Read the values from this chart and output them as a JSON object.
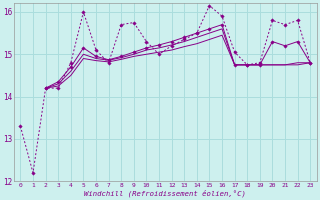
{
  "background_color": "#cdf0ee",
  "grid_color": "#aadddd",
  "line_color": "#880088",
  "xlim": [
    -0.5,
    23.5
  ],
  "ylim": [
    12,
    16.2
  ],
  "yticks": [
    12,
    13,
    14,
    15,
    16
  ],
  "xticks": [
    0,
    1,
    2,
    3,
    4,
    5,
    6,
    7,
    8,
    9,
    10,
    11,
    12,
    13,
    14,
    15,
    16,
    17,
    18,
    19,
    20,
    21,
    22,
    23
  ],
  "xlabel": "Windchill (Refroidissement éolien,°C)",
  "series": [
    {
      "x": [
        0,
        1,
        2,
        3,
        4,
        5,
        6,
        7,
        8,
        9,
        10,
        11,
        12,
        13,
        14,
        15,
        16,
        17,
        18,
        19,
        20,
        21,
        22,
        23
      ],
      "y": [
        13.3,
        12.2,
        14.2,
        14.2,
        14.8,
        16.0,
        15.1,
        14.8,
        15.7,
        15.75,
        15.3,
        15.0,
        15.2,
        15.35,
        15.5,
        16.15,
        15.9,
        15.05,
        14.75,
        14.8,
        15.8,
        15.7,
        15.8,
        14.8
      ],
      "linestyle": "dotted",
      "marker": true
    },
    {
      "x": [
        2,
        3,
        4,
        5,
        6,
        7,
        8,
        9,
        10,
        11,
        12,
        13,
        14,
        15,
        16,
        17,
        18,
        19,
        20,
        21,
        22,
        23
      ],
      "y": [
        14.2,
        14.25,
        14.5,
        14.9,
        14.85,
        14.82,
        14.88,
        14.95,
        15.0,
        15.05,
        15.1,
        15.18,
        15.25,
        15.35,
        15.45,
        14.75,
        14.75,
        14.75,
        14.75,
        14.75,
        14.75,
        14.8
      ],
      "linestyle": "solid",
      "marker": false
    },
    {
      "x": [
        2,
        3,
        4,
        5,
        6,
        7,
        8,
        9,
        10,
        11,
        12,
        13,
        14,
        15,
        16,
        17,
        18,
        19,
        20,
        21,
        22,
        23
      ],
      "y": [
        14.2,
        14.3,
        14.6,
        15.0,
        14.9,
        14.86,
        14.92,
        15.0,
        15.1,
        15.15,
        15.22,
        15.3,
        15.4,
        15.5,
        15.6,
        14.75,
        14.75,
        14.75,
        14.75,
        14.75,
        14.8,
        14.8
      ],
      "linestyle": "solid",
      "marker": false
    },
    {
      "x": [
        2,
        3,
        4,
        5,
        6,
        7,
        8,
        9,
        10,
        11,
        12,
        13,
        14,
        15,
        16,
        17,
        18,
        19,
        20,
        21,
        22,
        23
      ],
      "y": [
        14.2,
        14.35,
        14.7,
        15.15,
        14.95,
        14.87,
        14.95,
        15.05,
        15.15,
        15.22,
        15.3,
        15.4,
        15.5,
        15.6,
        15.7,
        14.75,
        14.75,
        14.75,
        15.3,
        15.2,
        15.3,
        14.8
      ],
      "linestyle": "solid",
      "marker": true
    }
  ]
}
